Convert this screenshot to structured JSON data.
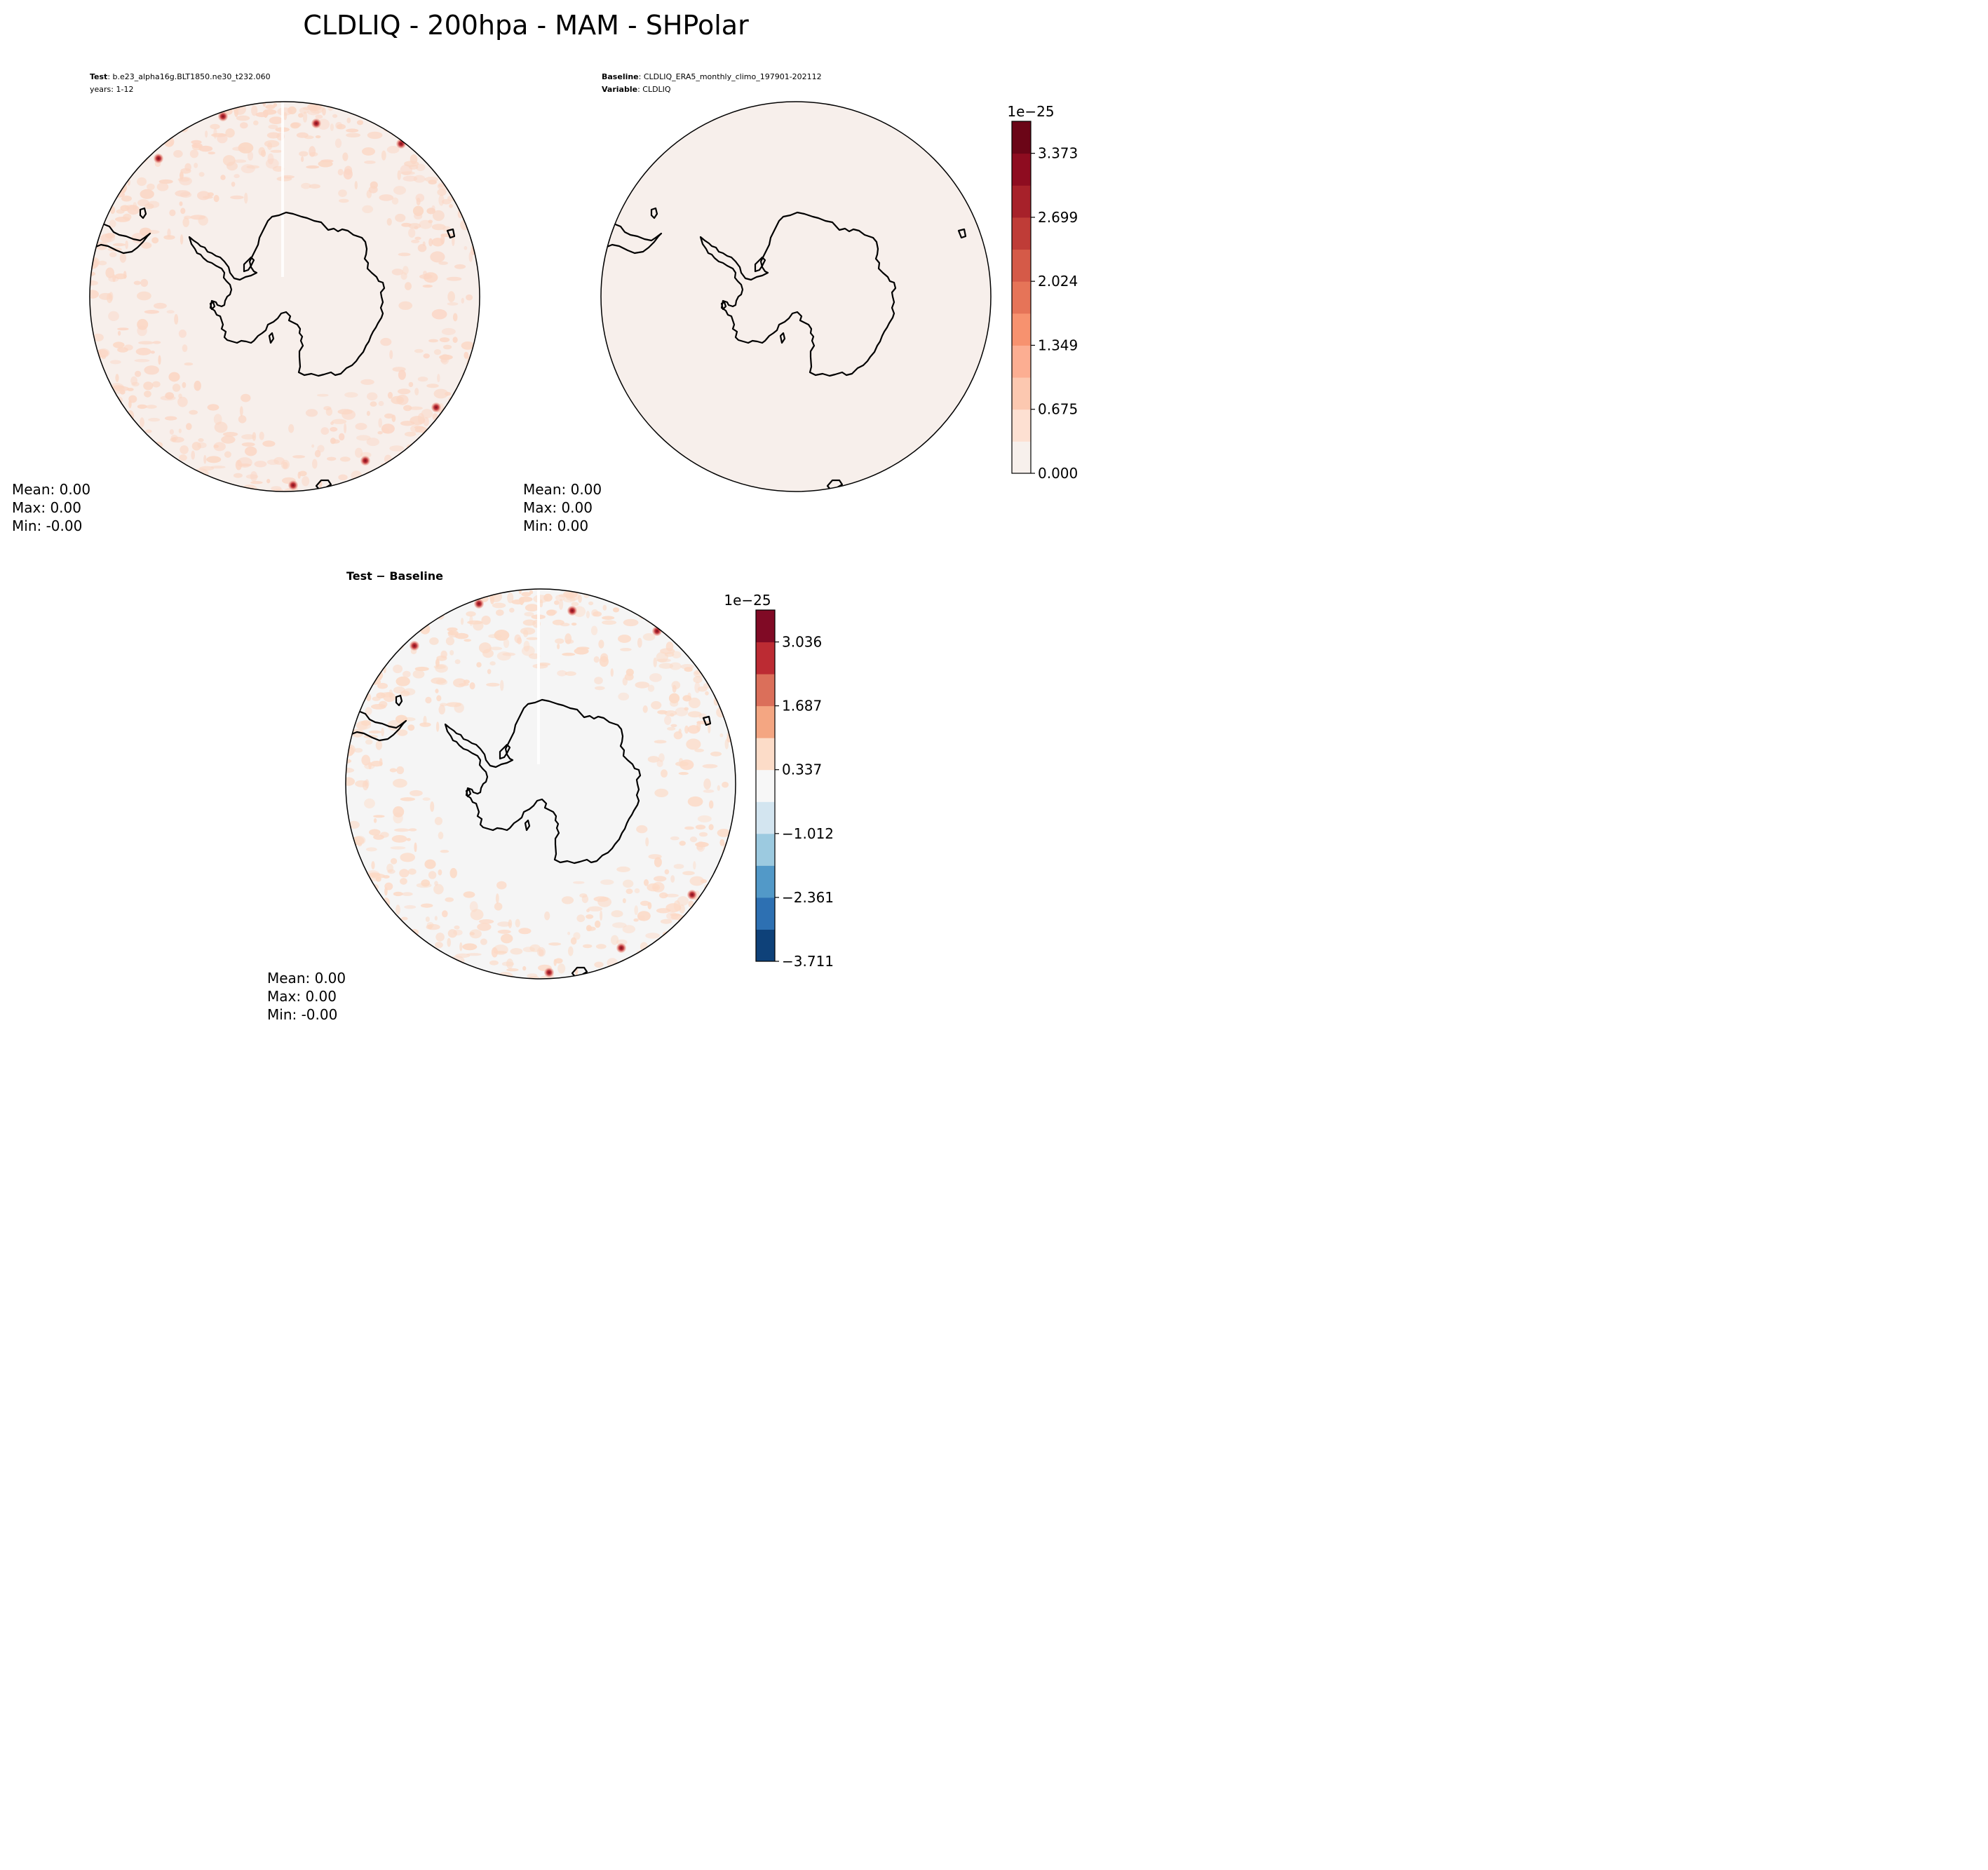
{
  "figure": {
    "title": "CLDLIQ - 200hpa - MAM - SHPolar"
  },
  "panels": {
    "test": {
      "label_bold": "Test",
      "label_text": ": b.e23_alpha16g.BLT1850.ne30_t232.060",
      "years": "years: 1-12",
      "stats": {
        "mean": "Mean:  0.00",
        "max": "Max:  0.00",
        "min": "Min: -0.00"
      },
      "fill_color": "#f7efeb"
    },
    "baseline": {
      "label1_bold": "Baseline",
      "label1_text": ": CLDLIQ_ERA5_monthly_climo_197901-202112",
      "label2_bold": "Variable",
      "label2_text": ": CLDLIQ",
      "stats": {
        "mean": "Mean:  0.00",
        "max": "Max:  0.00",
        "min": "Min:  0.00"
      },
      "fill_color": "#f7efeb"
    },
    "diff": {
      "label": "Test − Baseline",
      "stats": {
        "mean": "Mean:  0.00",
        "max": "Max:  0.00",
        "min": "Min: -0.00"
      },
      "fill_color": "#f5f5f5"
    }
  },
  "colorbars": {
    "reds": {
      "exponent": "1e−25",
      "ticks": [
        "3.373",
        "2.699",
        "2.024",
        "1.349",
        "0.675",
        "0.000"
      ],
      "colors": [
        "#f7f0ec",
        "#fde0d2",
        "#fcc8b0",
        "#fcae92",
        "#f7926f",
        "#e67458",
        "#d55a48",
        "#bf3c37",
        "#a7212a",
        "#8e0c20",
        "#6b0517"
      ]
    },
    "rdbu": {
      "exponent": "1e−25",
      "ticks": [
        "3.036",
        "1.687",
        "0.337",
        "−1.012",
        "−2.361",
        "−3.711"
      ],
      "colors": [
        "#0e4179",
        "#2d70b2",
        "#5299c8",
        "#9ccae0",
        "#d3e5f0",
        "#f7f7f7",
        "#fcdcc8",
        "#f4a682",
        "#db6f5a",
        "#bc2b33",
        "#800a25"
      ]
    }
  }
}
